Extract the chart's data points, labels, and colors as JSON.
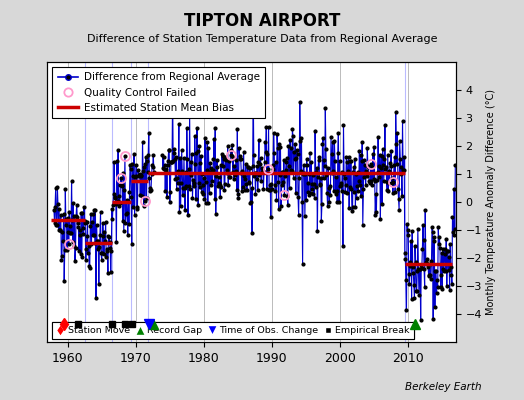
{
  "title": "TIPTON AIRPORT",
  "subtitle": "Difference of Station Temperature Data from Regional Average",
  "ylabel_right": "Monthly Temperature Anomaly Difference (°C)",
  "ylim": [
    -5,
    5
  ],
  "xlim": [
    1957,
    2017
  ],
  "xticks": [
    1960,
    1970,
    1980,
    1990,
    2000,
    2010
  ],
  "yticks": [
    -4,
    -3,
    -2,
    -1,
    0,
    1,
    2,
    3,
    4
  ],
  "background_color": "#d8d8d8",
  "plot_bg_color": "#ffffff",
  "grid_color": "#bbbbbb",
  "line_color": "#0000cc",
  "bias_color": "#cc0000",
  "marker_color": "#000000",
  "qc_color": "#ff99cc",
  "watermark": "Berkeley Earth",
  "segments": [
    {
      "start": 1957.5,
      "end": 1962.5,
      "bias": -0.65
    },
    {
      "start": 1962.5,
      "end": 1966.5,
      "bias": -1.45
    },
    {
      "start": 1966.5,
      "end": 1969.3,
      "bias": 0.0
    },
    {
      "start": 1969.3,
      "end": 1971.8,
      "bias": 0.75
    },
    {
      "start": 1971.8,
      "end": 2009.5,
      "bias": 1.05
    },
    {
      "start": 2009.5,
      "end": 2016.5,
      "bias": -2.2
    }
  ],
  "station_moves": [
    1959.5
  ],
  "empirical_breaks": [
    1961.5,
    1966.5,
    1968.5,
    1969.5
  ],
  "record_gaps": [
    1972.5,
    2011.0
  ],
  "obs_changes": [
    1972.0
  ],
  "qc_failed_times": [
    1960.2,
    1967.8,
    1968.4,
    1971.3,
    1984.0,
    1989.4,
    1991.8,
    2004.5,
    2007.8
  ],
  "gap_start": 1972.75,
  "gap_end": 1973.9,
  "seed": 42,
  "figsize": [
    5.24,
    4.0
  ],
  "dpi": 100
}
